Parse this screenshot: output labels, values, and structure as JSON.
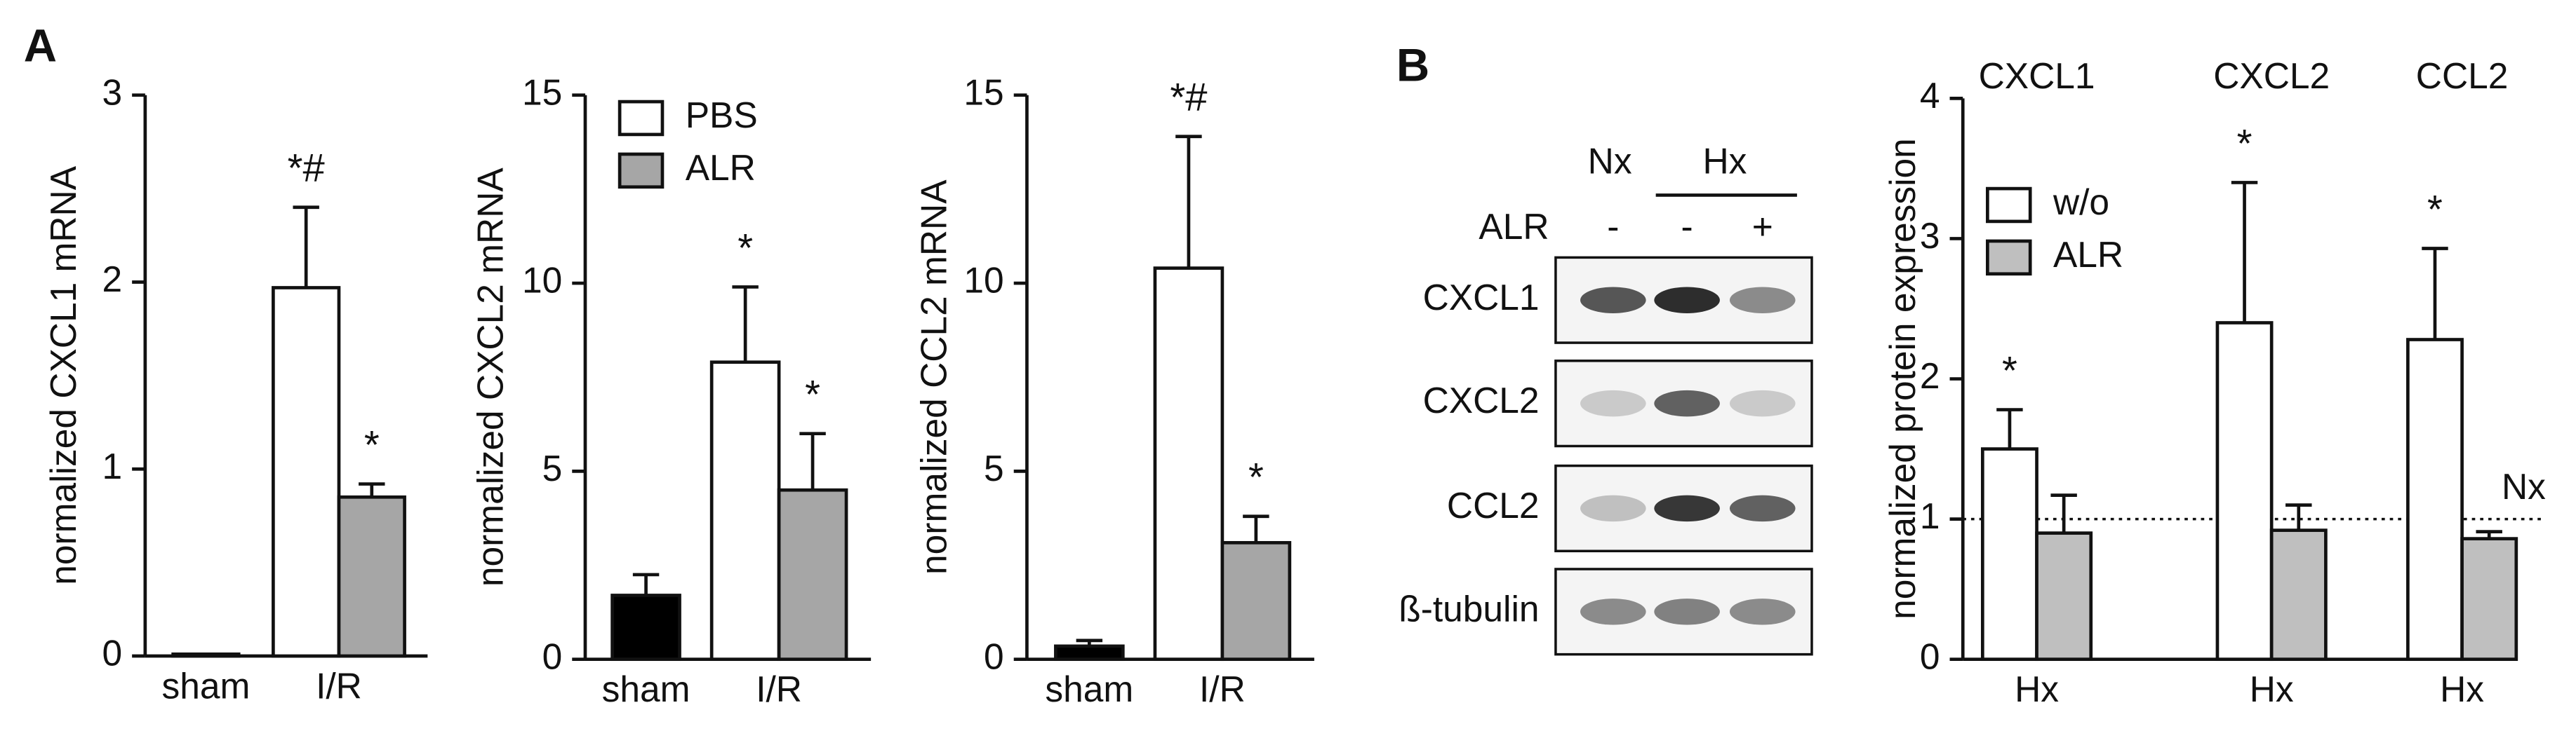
{
  "panel_labels": [
    "A",
    "B"
  ],
  "blot": {
    "columns": [
      "Nx",
      "Hx"
    ],
    "treatment_label": "ALR",
    "treatment": [
      "-",
      "-",
      "+"
    ],
    "rows": [
      "CXCL1",
      "CXCL2",
      "CCL2",
      "ß-tubulin"
    ]
  },
  "chart_data": [
    {
      "type": "bar",
      "ylabel": "normalized CXCL1 mRNA",
      "categories": [
        "sham",
        "I/R"
      ],
      "ylim": [
        0,
        3
      ],
      "yticks": [
        0,
        1,
        2,
        3
      ],
      "series": [
        {
          "color": "#000000",
          "values": [
            0.01,
            null
          ]
        },
        {
          "name": "PBS",
          "color": "#ffffff",
          "values": [
            null,
            1.97
          ],
          "errors": [
            null,
            0.43
          ],
          "annotations": [
            null,
            "*#"
          ]
        },
        {
          "name": "ALR",
          "color": "#a6a6a6",
          "values": [
            null,
            0.85
          ],
          "errors": [
            null,
            0.07
          ],
          "annotations": [
            null,
            "*"
          ]
        }
      ]
    },
    {
      "type": "bar",
      "ylabel": "normalized CXCL2 mRNA",
      "categories": [
        "sham",
        "I/R"
      ],
      "ylim": [
        0,
        15
      ],
      "yticks": [
        0,
        5,
        10,
        15
      ],
      "legend": true,
      "series": [
        {
          "color": "#000000",
          "values": [
            1.7,
            null
          ],
          "errors": [
            0.55,
            null
          ]
        },
        {
          "name": "PBS",
          "color": "#ffffff",
          "values": [
            null,
            7.9
          ],
          "errors": [
            null,
            2.0
          ],
          "annotations": [
            null,
            "*"
          ]
        },
        {
          "name": "ALR",
          "color": "#a6a6a6",
          "values": [
            null,
            4.5
          ],
          "errors": [
            null,
            1.5
          ],
          "annotations": [
            null,
            "*"
          ]
        }
      ]
    },
    {
      "type": "bar",
      "ylabel": "normalized CCL2 mRNA",
      "categories": [
        "sham",
        "I/R"
      ],
      "ylim": [
        0,
        15
      ],
      "yticks": [
        0,
        5,
        10,
        15
      ],
      "series": [
        {
          "color": "#000000",
          "values": [
            0.35,
            null
          ],
          "errors": [
            0.15,
            null
          ]
        },
        {
          "name": "PBS",
          "color": "#ffffff",
          "values": [
            null,
            10.4
          ],
          "errors": [
            null,
            3.5
          ],
          "annotations": [
            null,
            "*#"
          ]
        },
        {
          "name": "ALR",
          "color": "#a6a6a6",
          "values": [
            null,
            3.1
          ],
          "errors": [
            null,
            0.7
          ],
          "annotations": [
            null,
            "*"
          ]
        }
      ]
    },
    {
      "type": "bar",
      "ylabel": "normalized protein expression",
      "categories": [
        "Hx",
        "Hx",
        "Hx"
      ],
      "group_titles": [
        "CXCL1",
        "CXCL2",
        "CCL2"
      ],
      "ylim": [
        0,
        4
      ],
      "yticks": [
        0,
        1,
        2,
        3,
        4
      ],
      "legend": true,
      "reference_line": {
        "value": 1,
        "label": "Nx"
      },
      "series": [
        {
          "name": "w/o",
          "color": "#ffffff",
          "values": [
            1.5,
            2.4,
            2.28
          ],
          "errors": [
            0.28,
            1.0,
            0.65
          ],
          "annotations": [
            "*",
            "*",
            "*"
          ]
        },
        {
          "name": "ALR",
          "color": "#bfbfbf",
          "values": [
            0.9,
            0.92,
            0.86
          ],
          "errors": [
            0.27,
            0.18,
            0.05
          ]
        }
      ]
    }
  ]
}
